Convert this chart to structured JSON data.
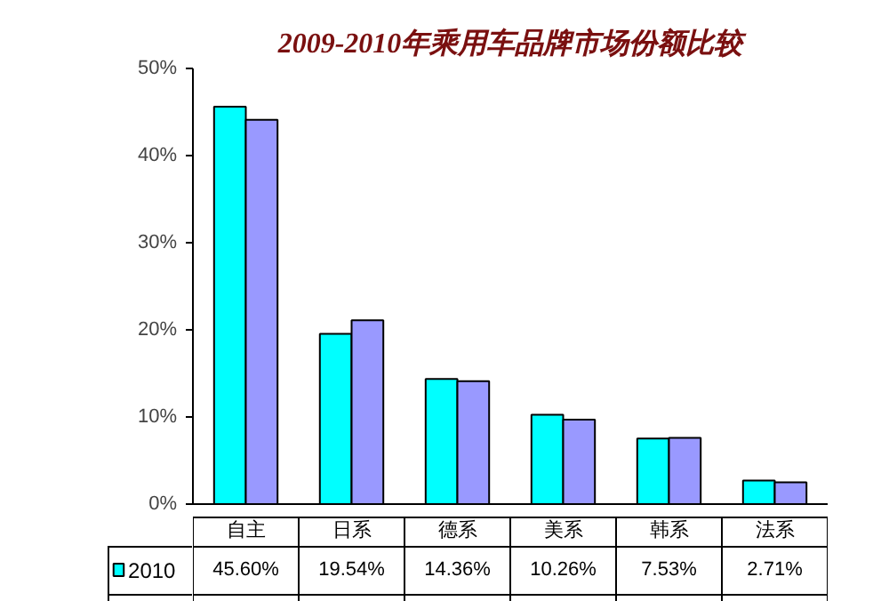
{
  "chart_data": {
    "type": "bar",
    "title": "2009-2010年乘用车品牌市场份额比较",
    "categories": [
      "自主",
      "日系",
      "德系",
      "美系",
      "韩系",
      "法系"
    ],
    "series": [
      {
        "name": "2010",
        "color": "#00ffff",
        "values": [
          45.6,
          19.54,
          14.36,
          10.26,
          7.53,
          2.71
        ],
        "value_labels": [
          "45.60%",
          "19.54%",
          "14.36%",
          "10.26%",
          "7.53%",
          "2.71%"
        ]
      },
      {
        "color": "#9999ff",
        "values": [
          44.1,
          21.1,
          14.1,
          9.7,
          7.6,
          2.5
        ]
      }
    ],
    "ylim": [
      0,
      50
    ],
    "yticks": [
      {
        "value": 0,
        "label": "0%"
      },
      {
        "value": 10,
        "label": "10%"
      },
      {
        "value": 20,
        "label": "20%"
      },
      {
        "value": 30,
        "label": "30%"
      },
      {
        "value": 40,
        "label": "40%"
      },
      {
        "value": 50,
        "label": "50%"
      }
    ],
    "grid": false,
    "legend": "bottom left"
  }
}
